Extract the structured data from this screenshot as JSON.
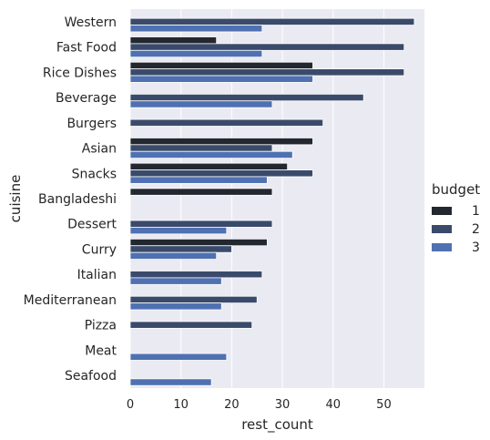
{
  "chart_data": {
    "type": "bar",
    "orientation": "horizontal",
    "xlabel": "rest_count",
    "ylabel": "cuisine",
    "xlim": [
      0,
      58
    ],
    "xticks": [
      0,
      10,
      20,
      30,
      40,
      50
    ],
    "grid": true,
    "legend": {
      "title": "budget",
      "placement": "right"
    },
    "categories": [
      "Western",
      "Fast Food",
      "Rice Dishes",
      "Beverage",
      "Burgers",
      "Asian",
      "Snacks",
      "Bangladeshi",
      "Dessert",
      "Curry",
      "Italian",
      "Mediterranean",
      "Pizza",
      "Meat",
      "Seafood"
    ],
    "series": [
      {
        "name": "1",
        "color": "#23272f",
        "values": [
          null,
          17,
          36,
          null,
          null,
          36,
          31,
          28,
          null,
          27,
          null,
          null,
          null,
          null,
          null
        ]
      },
      {
        "name": "2",
        "color": "#3a4a6b",
        "values": [
          56,
          54,
          54,
          46,
          38,
          28,
          36,
          null,
          28,
          20,
          26,
          25,
          24,
          null,
          null
        ]
      },
      {
        "name": "3",
        "color": "#4f71b2",
        "values": [
          26,
          26,
          36,
          28,
          null,
          32,
          27,
          null,
          19,
          17,
          18,
          18,
          null,
          19,
          16
        ]
      }
    ]
  }
}
